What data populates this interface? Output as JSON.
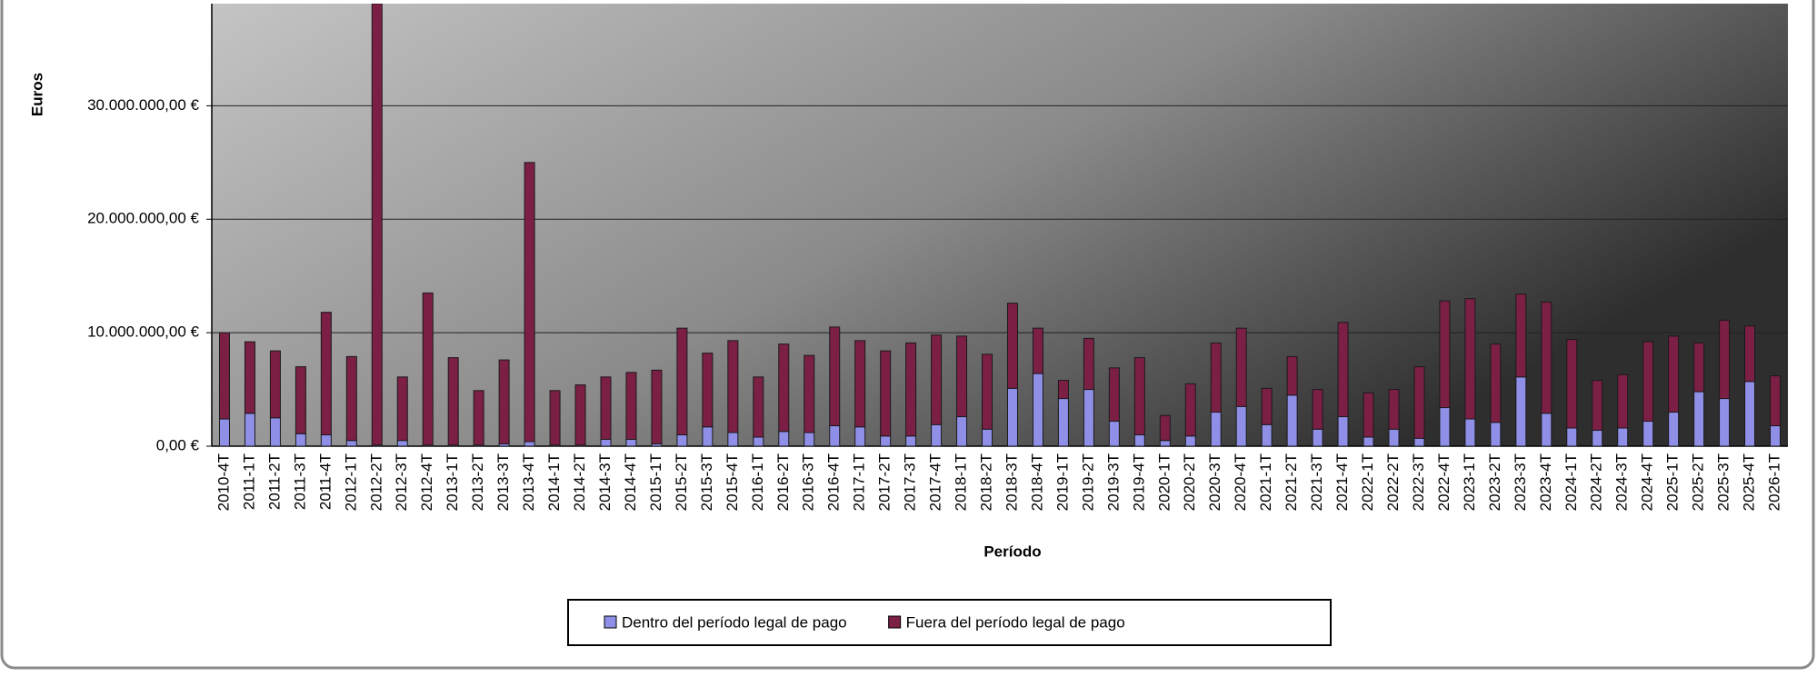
{
  "chart_data": {
    "type": "stacked-bar",
    "x_label": "Período",
    "y_label": "Euros",
    "categories": [
      "2010-4T",
      "2011-1T",
      "2011-2T",
      "2011-3T",
      "2011-4T",
      "2012-1T",
      "2012-2T",
      "2012-3T",
      "2012-4T",
      "2013-1T",
      "2013-2T",
      "2013-3T",
      "2013-4T",
      "2014-1T",
      "2014-2T",
      "2014-3T",
      "2014-4T",
      "2015-1T",
      "2015-2T",
      "2015-3T",
      "2015-4T",
      "2016-1T",
      "2016-2T",
      "2016-3T",
      "2016-4T",
      "2017-1T",
      "2017-2T",
      "2017-3T",
      "2017-4T",
      "2018-1T",
      "2018-2T",
      "2018-3T",
      "2018-4T",
      "2019-1T",
      "2019-2T",
      "2019-3T",
      "2019-4T",
      "2020-1T",
      "2020-2T",
      "2020-3T",
      "2020-4T",
      "2021-1T",
      "2021-2T",
      "2021-3T",
      "2021-4T",
      "2022-1T",
      "2022-2T",
      "2022-3T",
      "2022-4T",
      "2023-1T",
      "2023-2T",
      "2023-3T",
      "2023-4T",
      "2024-1T",
      "2024-2T",
      "2024-3T",
      "2024-4T",
      "2025-1T",
      "2025-2T",
      "2025-3T",
      "2025-4T",
      "2026-1T"
    ],
    "series": [
      {
        "name": "Dentro del período legal de pago",
        "color": "#8f8fe8",
        "values": [
          2400000,
          2900000,
          2500000,
          1100000,
          1000000,
          500000,
          100000,
          500000,
          100000,
          100000,
          100000,
          200000,
          400000,
          100000,
          100000,
          600000,
          600000,
          200000,
          1000000,
          1700000,
          1200000,
          800000,
          1300000,
          1200000,
          1800000,
          1700000,
          900000,
          900000,
          1900000,
          2600000,
          1500000,
          5100000,
          6400000,
          4200000,
          5000000,
          2200000,
          1000000,
          500000,
          900000,
          3000000,
          3500000,
          1900000,
          4500000,
          1500000,
          2600000,
          800000,
          1500000,
          700000,
          3400000,
          2400000,
          2100000,
          6100000,
          2900000,
          1600000,
          1400000,
          1600000,
          2200000,
          3000000,
          4800000,
          4200000,
          5700000,
          1800000
        ]
      },
      {
        "name": "Fuera del período legal de pago",
        "color": "#7b1f45",
        "values": [
          7600000,
          6300000,
          5900000,
          5900000,
          10800000,
          7400000,
          38900000,
          5600000,
          13400000,
          7700000,
          4800000,
          7400000,
          24600000,
          4800000,
          5300000,
          5500000,
          5900000,
          6500000,
          9400000,
          6500000,
          8100000,
          5300000,
          7700000,
          6800000,
          8700000,
          7600000,
          7500000,
          8200000,
          7900000,
          7100000,
          6600000,
          7500000,
          4000000,
          1600000,
          4500000,
          4700000,
          6800000,
          2200000,
          4600000,
          6100000,
          6900000,
          3200000,
          3400000,
          3500000,
          8300000,
          3900000,
          3500000,
          6300000,
          9400000,
          10600000,
          6900000,
          7300000,
          9800000,
          7800000,
          4400000,
          4700000,
          7000000,
          6700000,
          4300000,
          6900000,
          4900000,
          4400000
        ]
      }
    ],
    "ylim": [
      0,
      39000000
    ],
    "yticks": [
      {
        "value": 0,
        "label": "0,00 €"
      },
      {
        "value": 10000000,
        "label": "10.000.000,00 €"
      },
      {
        "value": 20000000,
        "label": "20.000.000,00 €"
      },
      {
        "value": 30000000,
        "label": "30.000.000,00 €"
      }
    ],
    "grid": true
  }
}
